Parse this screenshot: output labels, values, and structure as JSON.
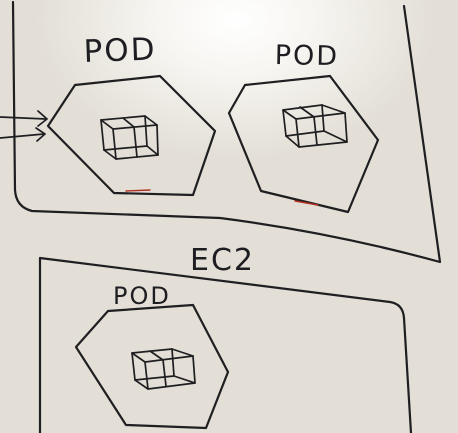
{
  "whiteboard": {
    "top_node": {
      "pods": [
        {
          "label": "POD",
          "container_icon": "container-cube-icon"
        },
        {
          "label": "POD",
          "container_icon": "container-cube-icon"
        }
      ],
      "incoming_arrows": 2
    },
    "bottom_node": {
      "label": "EC2",
      "pods": [
        {
          "label": "POD",
          "container_icon": "container-cube-icon"
        }
      ]
    }
  }
}
